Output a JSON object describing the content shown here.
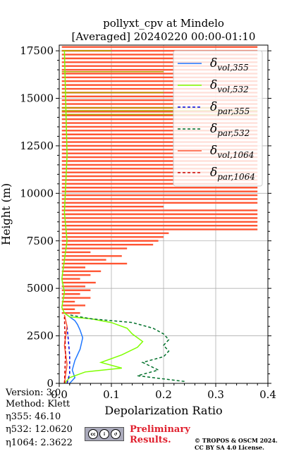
{
  "chart_data": {
    "type": "line",
    "title": "pollyxt_cpv at Mindelo",
    "subtitle": "[Averaged] 20240220 00:00-01:10",
    "xlabel": "Depolarization Ratio",
    "ylabel": "Height (m)",
    "xlim": [
      0,
      0.4
    ],
    "ylim": [
      0,
      17800
    ],
    "xticks": [
      0.0,
      0.1,
      0.2,
      0.3,
      0.4
    ],
    "xtick_labels": [
      "0.0",
      "0.1",
      "0.2",
      "0.3",
      "0.4"
    ],
    "yticks": [
      0,
      2500,
      5000,
      7500,
      10000,
      12500,
      15000,
      17500
    ],
    "ytick_labels": [
      "0",
      "2500",
      "5000",
      "7500",
      "10000",
      "12500",
      "15000",
      "17500"
    ],
    "grid": true,
    "legend_position": "top-right",
    "series": [
      {
        "name": "δvol,355",
        "legend_main": "δ",
        "legend_sub": "vol,355",
        "color": "#1f77ff",
        "dash": "solid",
        "x": [
          0.02,
          0.03,
          0.025,
          0.03,
          0.04,
          0.045,
          0.04,
          0.035,
          0.03,
          0.02,
          0.01
        ],
        "y": [
          0,
          300,
          700,
          1200,
          1800,
          2400,
          2800,
          3100,
          3300,
          3500,
          3700
        ]
      },
      {
        "name": "δvol,532",
        "legend_main": "δ",
        "legend_sub": "vol,532",
        "color": "#7fff00",
        "dash": "solid",
        "x": [
          0.01,
          0.02,
          0.05,
          0.12,
          0.08,
          0.12,
          0.15,
          0.16,
          0.14,
          0.13,
          0.1,
          0.06,
          0.02,
          0.01,
          0.005,
          0.01,
          0.005,
          0.01,
          0.015,
          0.01,
          0.015,
          0.01
        ],
        "y": [
          0,
          300,
          600,
          800,
          1100,
          1500,
          1900,
          2200,
          2600,
          2900,
          3200,
          3400,
          3500,
          3700,
          4000,
          4800,
          5500,
          6500,
          7500,
          9000,
          12000,
          17500
        ]
      },
      {
        "name": "δpar,355",
        "legend_main": "δ",
        "legend_sub": "par,355",
        "color": "#0000dd",
        "dash": "4 3",
        "x": [
          0.015,
          0.02,
          0.02,
          0.015
        ],
        "y": [
          0,
          500,
          1500,
          3000
        ]
      },
      {
        "name": "δpar,532",
        "legend_main": "δ",
        "legend_sub": "par,532",
        "color": "#00702a",
        "dash": "4 3",
        "x": [
          0.24,
          0.15,
          0.19,
          0.16,
          0.2,
          0.21,
          0.2,
          0.21,
          0.2,
          0.18,
          0.14,
          0.06,
          0.02
        ],
        "y": [
          100,
          400,
          700,
          1100,
          1400,
          1700,
          2000,
          2300,
          2600,
          2900,
          3200,
          3400,
          3600
        ]
      },
      {
        "name": "δvol,1064",
        "legend_main": "δ",
        "legend_sub": "vol,1064",
        "color": "#ff5533",
        "dash": "solid",
        "x": [
          0.01,
          0.015,
          0.01,
          0.015,
          0.01
        ],
        "y": [
          0,
          1000,
          2000,
          3000,
          3600
        ]
      },
      {
        "name": "δpar,1064",
        "legend_main": "δ",
        "legend_sub": "par,1064",
        "color": "#cc0000",
        "dash": "4 3",
        "x": [
          0.01,
          0.012,
          0.01
        ],
        "y": [
          0,
          1500,
          3500
        ]
      }
    ],
    "noise_spikes_1064": [
      [
        3700,
        0.04
      ],
      [
        3900,
        0.03
      ],
      [
        4100,
        0.05
      ],
      [
        4300,
        0.03
      ],
      [
        4500,
        0.06
      ],
      [
        4700,
        0.04
      ],
      [
        4900,
        0.06
      ],
      [
        5100,
        0.05
      ],
      [
        5300,
        0.07
      ],
      [
        5500,
        0.04
      ],
      [
        5700,
        0.06
      ],
      [
        5900,
        0.08
      ],
      [
        6100,
        0.05
      ],
      [
        6300,
        0.13
      ],
      [
        6500,
        0.09
      ],
      [
        6700,
        0.12
      ],
      [
        6900,
        0.06
      ],
      [
        7100,
        0.13
      ],
      [
        7300,
        0.18
      ],
      [
        7500,
        0.19
      ],
      [
        7700,
        0.2
      ],
      [
        7900,
        0.21
      ],
      [
        8100,
        0.38
      ],
      [
        8300,
        0.38
      ],
      [
        8500,
        0.38
      ],
      [
        8700,
        0.38
      ],
      [
        8900,
        0.38
      ],
      [
        9100,
        0.38
      ],
      [
        9300,
        0.2
      ],
      [
        9500,
        0.38
      ],
      [
        9700,
        0.38
      ],
      [
        9900,
        0.38
      ],
      [
        10100,
        0.38
      ],
      [
        10300,
        0.38
      ],
      [
        10500,
        0.38
      ],
      [
        10700,
        0.38
      ],
      [
        10900,
        0.38
      ],
      [
        11100,
        0.38
      ],
      [
        11300,
        0.38
      ],
      [
        11500,
        0.38
      ],
      [
        11700,
        0.38
      ],
      [
        11900,
        0.38
      ],
      [
        12100,
        0.38
      ],
      [
        12300,
        0.38
      ],
      [
        12500,
        0.38
      ],
      [
        12700,
        0.38
      ],
      [
        12900,
        0.38
      ],
      [
        13100,
        0.38
      ],
      [
        13300,
        0.38
      ],
      [
        13500,
        0.38
      ],
      [
        13700,
        0.38
      ],
      [
        13900,
        0.38
      ],
      [
        14100,
        0.38
      ],
      [
        14300,
        0.38
      ],
      [
        14500,
        0.38
      ],
      [
        14700,
        0.38
      ],
      [
        14900,
        0.38
      ],
      [
        15100,
        0.38
      ],
      [
        15300,
        0.38
      ],
      [
        15500,
        0.38
      ],
      [
        15700,
        0.38
      ],
      [
        15900,
        0.38
      ],
      [
        16100,
        0.38
      ],
      [
        16300,
        0.38
      ],
      [
        16500,
        0.38
      ],
      [
        16700,
        0.38
      ],
      [
        16900,
        0.38
      ],
      [
        17100,
        0.38
      ],
      [
        17300,
        0.38
      ],
      [
        17500,
        0.38
      ],
      [
        17700,
        0.38
      ]
    ],
    "olive_band_532": [
      [
        14150,
        0.38
      ],
      [
        14350,
        0.38
      ],
      [
        14500,
        0.3
      ],
      [
        15300,
        0.2
      ],
      [
        16400,
        0.2
      ],
      [
        17500,
        0.1
      ]
    ]
  },
  "footer": {
    "version": "Version: 3.0",
    "method": "Method: Klett",
    "eta355": "η355:  46.10",
    "eta532": "η532: 12.0620",
    "eta1064": "η1064: 2.3622",
    "license_badge": "BY SA",
    "preliminary_line1": "Preliminary",
    "preliminary_line2": "Results.",
    "credit_line1": "© TROPOS & OSCM 2024.",
    "credit_line2": "CC BY SA 4.0 License."
  }
}
